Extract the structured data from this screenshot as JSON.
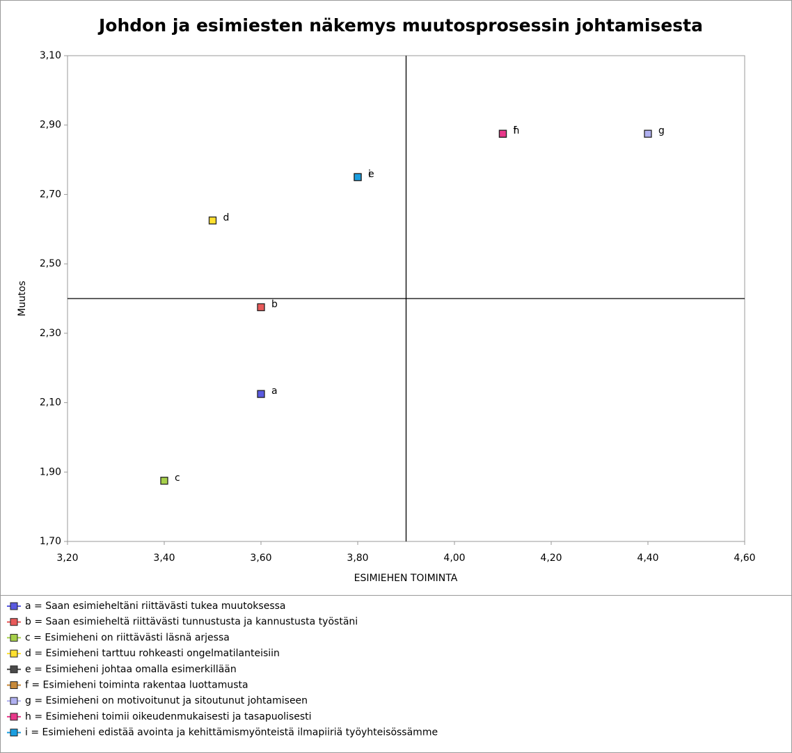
{
  "chart_data": {
    "type": "scatter",
    "title": "Johdon ja esimiesten näkemys muutosprosessin johtamisesta",
    "x_label": "ESIMIEHEN TOIMINTA",
    "y_label": "Muutos",
    "xlim": [
      3.2,
      4.6
    ],
    "xticks": [
      {
        "value": 3.2,
        "label": "3,20"
      },
      {
        "value": 3.4,
        "label": "3,40"
      },
      {
        "value": 3.6,
        "label": "3,60"
      },
      {
        "value": 3.8,
        "label": "3,80"
      },
      {
        "value": 4.0,
        "label": "4,00"
      },
      {
        "value": 4.2,
        "label": "4,20"
      },
      {
        "value": 4.4,
        "label": "4,40"
      },
      {
        "value": 4.6,
        "label": "4,60"
      }
    ],
    "ylim": [
      1.7,
      3.1
    ],
    "yticks": [
      {
        "value": 1.7,
        "label": "1,70"
      },
      {
        "value": 1.9,
        "label": "1,90"
      },
      {
        "value": 2.1,
        "label": "2,10"
      },
      {
        "value": 2.3,
        "label": "2,30"
      },
      {
        "value": 2.5,
        "label": "2,50"
      },
      {
        "value": 2.7,
        "label": "2,70"
      },
      {
        "value": 2.9,
        "label": "2,90"
      },
      {
        "value": 3.1,
        "label": "3,10"
      }
    ],
    "crosshair": {
      "x": 3.9,
      "y": 2.4
    },
    "grid": false,
    "legend": "bottom",
    "series": [
      {
        "name": "a = Saan esimieheltäni riittävästi tukea muutoksessa",
        "point_label": "a",
        "color": "#5a5ae0",
        "x": [
          3.6
        ],
        "values": [
          2.125
        ]
      },
      {
        "name": "b = Saan esimieheltä riittävästi tunnustusta ja kannustusta työstäni",
        "point_label": "b",
        "color": "#e85a5a",
        "x": [
          3.6
        ],
        "values": [
          2.375
        ]
      },
      {
        "name": "c = Esimieheni on riittävästi läsnä arjessa",
        "point_label": "c",
        "color": "#a6d04a",
        "x": [
          3.4
        ],
        "values": [
          1.875
        ]
      },
      {
        "name": "d = Esimieheni tarttuu rohkeasti ongelmatilanteisiin",
        "point_label": "d",
        "color": "#ffe030",
        "x": [
          3.5
        ],
        "values": [
          2.625
        ]
      },
      {
        "name": "e = Esimieheni johtaa omalla esimerkillään",
        "point_label": "e",
        "color": "#4a4a4a",
        "x": [
          3.8
        ],
        "values": [
          2.75
        ]
      },
      {
        "name": "f = Esimieheni toiminta rakentaa luottamusta",
        "point_label": "f",
        "color": "#c88a3a",
        "x": [
          4.1
        ],
        "values": [
          2.875
        ]
      },
      {
        "name": "g = Esimieheni on motivoitunut ja sitoutunut johtamiseen",
        "point_label": "g",
        "color": "#b0b0f0",
        "x": [
          4.4
        ],
        "values": [
          2.875
        ]
      },
      {
        "name": "h = Esimieheni toimii oikeudenmukaisesti ja tasapuolisesti",
        "point_label": "h",
        "color": "#e8388a",
        "x": [
          4.1
        ],
        "values": [
          2.875
        ]
      },
      {
        "name": "i = Esimieheni edistää avointa ja kehittämismyönteistä ilmapiiriä työyhteisössämme",
        "point_label": "i",
        "color": "#1a9ee0",
        "x": [
          3.8
        ],
        "values": [
          2.75
        ]
      }
    ]
  }
}
